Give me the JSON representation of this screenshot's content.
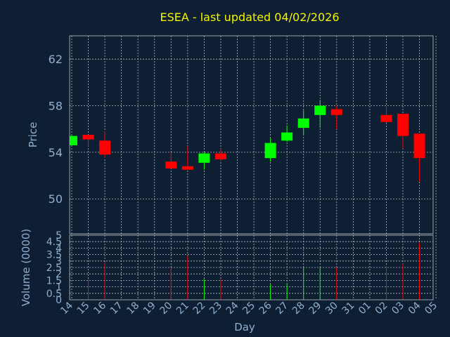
{
  "chart_data": [
    {
      "type": "candlestick",
      "title": "ESEA - last updated 04/02/2026",
      "xlabel": "Day",
      "ylabel": "Price",
      "x_ticks": [
        "14",
        "15",
        "16",
        "17",
        "18",
        "19",
        "20",
        "21",
        "22",
        "23",
        "24",
        "25",
        "26",
        "27",
        "28",
        "29",
        "30",
        "31",
        "01",
        "02",
        "03",
        "04",
        "05"
      ],
      "y_ticks": [
        50,
        54,
        58,
        62
      ],
      "ylim": [
        47,
        64
      ],
      "grid": true,
      "colors": {
        "up": "#00ff00",
        "down": "#ff0000"
      },
      "candles": [
        {
          "x": "14",
          "open": 54.6,
          "high": 55.5,
          "low": 54.6,
          "close": 55.4
        },
        {
          "x": "15",
          "open": 55.5,
          "high": 55.5,
          "low": 54.5,
          "close": 55.1
        },
        {
          "x": "16",
          "open": 55.0,
          "high": 55.8,
          "low": 53.5,
          "close": 53.8
        },
        {
          "x": "20",
          "open": 53.2,
          "high": 54.0,
          "low": 52.6,
          "close": 52.6
        },
        {
          "x": "21",
          "open": 52.8,
          "high": 54.5,
          "low": 52.5,
          "close": 52.5
        },
        {
          "x": "22",
          "open": 53.1,
          "high": 54.0,
          "low": 52.5,
          "close": 53.9
        },
        {
          "x": "23",
          "open": 53.9,
          "high": 54.3,
          "low": 53.3,
          "close": 53.4
        },
        {
          "x": "26",
          "open": 53.5,
          "high": 55.2,
          "low": 53.2,
          "close": 54.8
        },
        {
          "x": "27",
          "open": 55.0,
          "high": 56.3,
          "low": 54.9,
          "close": 55.7
        },
        {
          "x": "28",
          "open": 56.1,
          "high": 57.6,
          "low": 55.5,
          "close": 56.9
        },
        {
          "x": "29",
          "open": 57.2,
          "high": 58.5,
          "low": 56.1,
          "close": 58.0
        },
        {
          "x": "30",
          "open": 57.7,
          "high": 58.0,
          "low": 56.0,
          "close": 57.2
        },
        {
          "x": "02",
          "open": 57.2,
          "high": 58.0,
          "low": 56.5,
          "close": 56.6
        },
        {
          "x": "03",
          "open": 57.3,
          "high": 57.3,
          "low": 54.3,
          "close": 55.4
        },
        {
          "x": "04",
          "open": 55.6,
          "high": 55.6,
          "low": 51.5,
          "close": 53.5
        }
      ]
    },
    {
      "type": "bar",
      "ylabel": "Volume (0000)",
      "y_ticks": [
        "0",
        "0.5",
        "1",
        "1.5",
        "2",
        "2.5",
        "3",
        "3.5",
        "4",
        "4.5",
        "5"
      ],
      "ylim": [
        0,
        5
      ],
      "bars": [
        {
          "x": "15",
          "value": 1.6,
          "color": "#ff0000"
        },
        {
          "x": "16",
          "value": 2.9,
          "color": "#ff0000"
        },
        {
          "x": "20",
          "value": 2.5,
          "color": "#ff0000"
        },
        {
          "x": "21",
          "value": 3.4,
          "color": "#ff0000"
        },
        {
          "x": "22",
          "value": 1.6,
          "color": "#00ff00"
        },
        {
          "x": "23",
          "value": 1.6,
          "color": "#ff0000"
        },
        {
          "x": "26",
          "value": 1.2,
          "color": "#00ff00"
        },
        {
          "x": "27",
          "value": 1.2,
          "color": "#00ff00"
        },
        {
          "x": "28",
          "value": 2.5,
          "color": "#00ff00"
        },
        {
          "x": "29",
          "value": 2.5,
          "color": "#00ff00"
        },
        {
          "x": "30",
          "value": 2.5,
          "color": "#ff0000"
        },
        {
          "x": "02",
          "value": 2.6,
          "color": "#ff0000"
        },
        {
          "x": "03",
          "value": 2.8,
          "color": "#ff0000"
        },
        {
          "x": "04",
          "value": 4.4,
          "color": "#ff0000"
        }
      ]
    }
  ]
}
